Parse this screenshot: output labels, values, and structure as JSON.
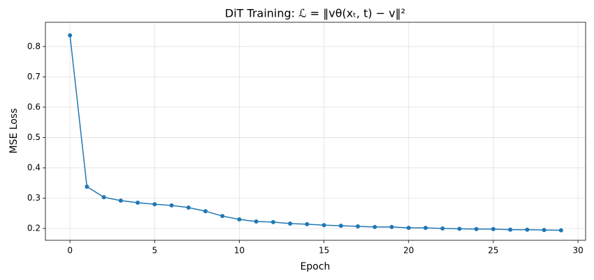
{
  "chart_data": {
    "type": "line",
    "title": "DiT Training: ℒ = ‖vθ(xₜ, t) − v‖²",
    "x_label": "Epoch",
    "y_label": "MSE Loss",
    "x": [
      0,
      1,
      2,
      3,
      4,
      5,
      6,
      7,
      8,
      9,
      10,
      11,
      12,
      13,
      14,
      15,
      16,
      17,
      18,
      19,
      20,
      21,
      22,
      23,
      24,
      25,
      26,
      27,
      28,
      29
    ],
    "values": [
      0.837,
      0.338,
      0.303,
      0.292,
      0.285,
      0.28,
      0.276,
      0.269,
      0.257,
      0.241,
      0.23,
      0.223,
      0.221,
      0.216,
      0.214,
      0.211,
      0.209,
      0.207,
      0.205,
      0.205,
      0.202,
      0.202,
      0.2,
      0.199,
      0.198,
      0.198,
      0.196,
      0.196,
      0.195,
      0.194
    ],
    "color": "#1f77b4",
    "xlim": [
      -1.45,
      30.45
    ],
    "ylim": [
      0.161,
      0.88
    ],
    "xticks": [
      0,
      5,
      10,
      15,
      20,
      25,
      30
    ],
    "yticks": [
      0.2,
      0.3,
      0.4,
      0.5,
      0.6,
      0.7,
      0.8
    ],
    "grid": true
  }
}
